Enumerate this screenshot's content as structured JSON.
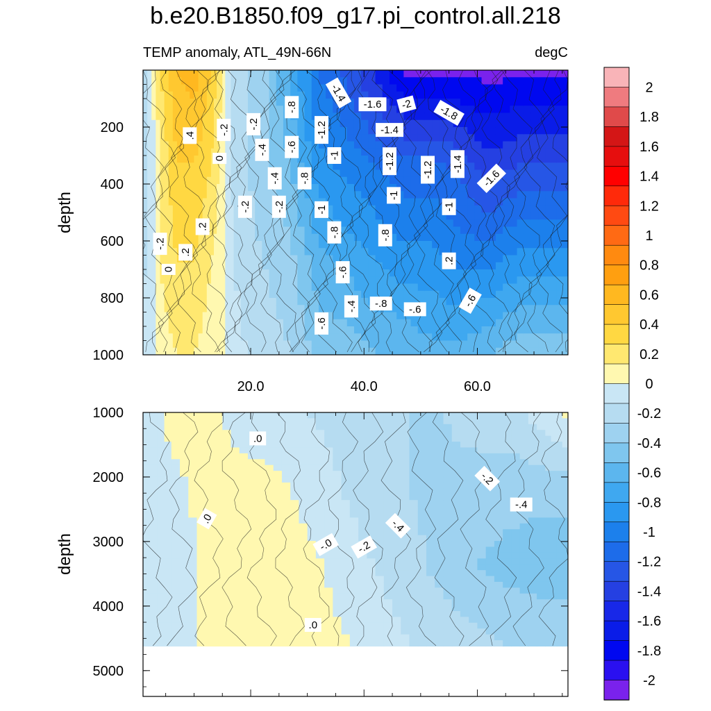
{
  "title": "b.e20.B1850.f09_g17.pi_control.all.218",
  "subtitle_left": "TEMP anomaly, ATL_49N-66N",
  "subtitle_right": "degC",
  "chart_data": [
    {
      "type": "contour",
      "panel": "upper",
      "ylabel": "depth",
      "xlabel": "",
      "xlim": [
        1,
        76
      ],
      "ylim": [
        1000,
        0
      ],
      "xticks": [
        20,
        40,
        60
      ],
      "xtick_labels": [
        "20.0",
        "40.0",
        "60.0"
      ],
      "yticks": [
        200,
        400,
        600,
        800,
        1000
      ],
      "ytick_labels": [
        "200",
        "400",
        "600",
        "800",
        "1000"
      ],
      "columns": [
        {
          "x": 1,
          "v": [
            -0.3,
            -0.2,
            -0.2,
            -0.1
          ]
        },
        {
          "x": 4,
          "v": [
            0.2,
            0.1,
            0.1,
            0.05
          ]
        },
        {
          "x": 7,
          "v": [
            0.4,
            0.3,
            0.2,
            0.1
          ]
        },
        {
          "x": 10,
          "v": [
            0.45,
            0.3,
            0.2,
            0.1
          ]
        },
        {
          "x": 13,
          "v": [
            0.3,
            0.2,
            0.1,
            0.05
          ]
        },
        {
          "x": 15,
          "v": [
            0.1,
            0.05,
            0.05,
            0.05
          ]
        },
        {
          "x": 17,
          "v": [
            -0.2,
            -0.2,
            -0.15,
            -0.1
          ]
        },
        {
          "x": 22,
          "v": [
            -0.4,
            -0.4,
            -0.3,
            -0.2
          ]
        },
        {
          "x": 27,
          "v": [
            -0.8,
            -0.6,
            -0.4,
            -0.3
          ]
        },
        {
          "x": 32,
          "v": [
            -1.2,
            -1.0,
            -0.7,
            -0.5
          ]
        },
        {
          "x": 37,
          "v": [
            -1.4,
            -1.1,
            -0.8,
            -0.5
          ]
        },
        {
          "x": 42,
          "v": [
            -1.7,
            -1.2,
            -0.9,
            -0.6
          ]
        },
        {
          "x": 47,
          "v": [
            -2.0,
            -1.3,
            -1.0,
            -0.6
          ]
        },
        {
          "x": 52,
          "v": [
            -2.0,
            -1.3,
            -1.0,
            -0.7
          ]
        },
        {
          "x": 57,
          "v": [
            -2.0,
            -1.4,
            -1.1,
            -0.7
          ]
        },
        {
          "x": 62,
          "v": [
            -2.0,
            -1.6,
            -1.1,
            -0.6
          ]
        },
        {
          "x": 67,
          "v": [
            -2.0,
            -1.5,
            -1.0,
            -0.5
          ]
        },
        {
          "x": 72,
          "v": [
            -2.0,
            -1.5,
            -1.0,
            -0.5
          ]
        },
        {
          "x": 76,
          "v": [
            -2.0,
            -1.5,
            -1.0,
            -0.5
          ]
        }
      ],
      "contour_labels": [
        "-1.4",
        "-1.6",
        "-2",
        "-1.8",
        "-1.4",
        "-1.2",
        "-.8",
        "-.2",
        "-.2",
        ".4",
        "0",
        "-.4",
        "-.6",
        "-1",
        "-.8",
        "-1.2",
        "-1.2",
        "-1.4",
        "-1.6",
        "-.4",
        "-.2",
        "-.2",
        ".2",
        "-1",
        "-1",
        "-1",
        ".2",
        "-.2",
        "-.8",
        "-.8",
        ".2",
        "0",
        "-.6",
        "-.8",
        "-.4",
        "-.6",
        "-.6",
        "-.6"
      ]
    },
    {
      "type": "contour",
      "panel": "lower",
      "ylabel": "depth",
      "xlabel": "",
      "xlim": [
        1,
        76
      ],
      "ylim": [
        5400,
        1000
      ],
      "data_bottom": 4620,
      "yticks": [
        1000,
        2000,
        3000,
        4000,
        5000
      ],
      "ytick_labels": [
        "1000",
        "2000",
        "3000",
        "4000",
        "5000"
      ],
      "columns": [
        {
          "x": 1,
          "v": [
            -0.1,
            -0.05,
            -0.1,
            -0.1
          ]
        },
        {
          "x": 6,
          "v": [
            0.05,
            -0.05,
            -0.1,
            -0.1
          ]
        },
        {
          "x": 12,
          "v": [
            0.05,
            0.05,
            0.02,
            0.02
          ]
        },
        {
          "x": 18,
          "v": [
            -0.05,
            0.05,
            0.1,
            0.05
          ]
        },
        {
          "x": 24,
          "v": [
            -0.1,
            0.05,
            0.1,
            0.05
          ]
        },
        {
          "x": 30,
          "v": [
            -0.15,
            -0.05,
            0.05,
            0.05
          ]
        },
        {
          "x": 36,
          "v": [
            -0.2,
            -0.15,
            -0.05,
            0.02
          ]
        },
        {
          "x": 42,
          "v": [
            -0.25,
            -0.25,
            -0.15,
            -0.05
          ]
        },
        {
          "x": 48,
          "v": [
            -0.3,
            -0.3,
            -0.25,
            -0.15
          ]
        },
        {
          "x": 54,
          "v": [
            -0.3,
            -0.35,
            -0.35,
            -0.2
          ]
        },
        {
          "x": 60,
          "v": [
            -0.2,
            -0.4,
            -0.45,
            -0.25
          ]
        },
        {
          "x": 66,
          "v": [
            -0.2,
            -0.4,
            -0.5,
            -0.3
          ]
        },
        {
          "x": 72,
          "v": [
            -0.05,
            -0.4,
            -0.55,
            -0.3
          ]
        },
        {
          "x": 76,
          "v": [
            0.05,
            -0.4,
            -0.55,
            -0.3
          ]
        }
      ],
      "contour_labels": [
        ".0",
        "-.2",
        "-.4",
        ".0",
        "-.4",
        "-.0",
        "-.2",
        ".0"
      ]
    }
  ],
  "colorbar": {
    "levels": [
      -2,
      -1.8,
      -1.6,
      -1.4,
      -1.2,
      -1,
      -0.8,
      -0.6,
      -0.4,
      -0.2,
      0,
      0.2,
      0.4,
      0.6,
      0.8,
      1,
      1.2,
      1.4,
      1.6,
      1.8,
      2
    ],
    "tick_labels": [
      "2",
      "1.8",
      "1.6",
      "1.4",
      "1.2",
      "1",
      "0.8",
      "0.6",
      "0.4",
      "0.2",
      "0",
      "-0.2",
      "-0.4",
      "-0.6",
      "-0.8",
      "-1",
      "-1.2",
      "-1.4",
      "-1.6",
      "-1.8",
      "-2"
    ],
    "colors_top_to_bottom": [
      "#f9b4b8",
      "#ef7b7f",
      "#e04a4a",
      "#d41616",
      "#e60e0e",
      "#ff0000",
      "#ff2a0a",
      "#ff4a12",
      "#ff6a14",
      "#ff8a10",
      "#ff9f10",
      "#ffb820",
      "#ffc830",
      "#ffd842",
      "#ffe870",
      "#fff8b0",
      "#c9e6f5",
      "#b6dcf1",
      "#9ed2f0",
      "#7fc6ee",
      "#5cb6ee",
      "#3fa8f0",
      "#2a98f0",
      "#1c80ec",
      "#1d6cea",
      "#2656e6",
      "#2540e2",
      "#1828e8",
      "#0a1ce8",
      "#0008f0",
      "#2a10f0",
      "#7a22ec"
    ]
  },
  "colors": {
    "pos_ramp": [
      "#fff8b0",
      "#ffe870",
      "#ffd842",
      "#ffc830",
      "#ffb820",
      "#ff9f10"
    ],
    "neg_ramp": [
      "#c9e6f5",
      "#b6dcf1",
      "#9ed2f0",
      "#7fc6ee",
      "#5cb6ee",
      "#3fa8f0",
      "#2a98f0",
      "#1c80ec",
      "#1d6cea",
      "#2656e6",
      "#2540e2",
      "#0a1ce8",
      "#0008f0",
      "#7a22ec"
    ]
  }
}
